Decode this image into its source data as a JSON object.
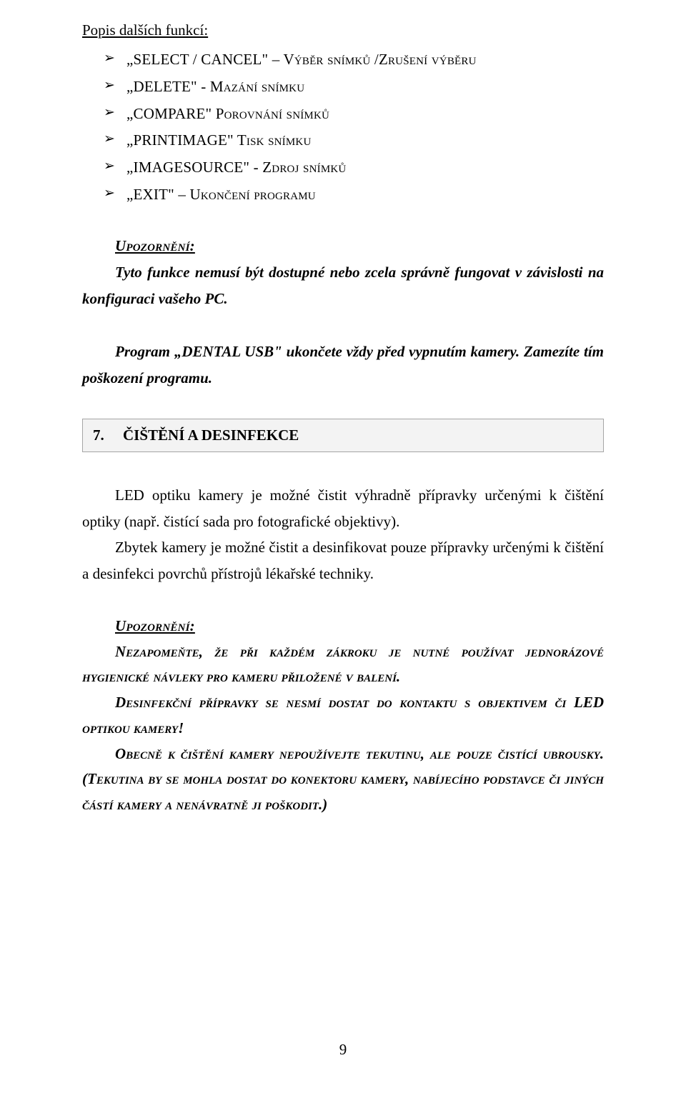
{
  "colors": {
    "page_bg": "#ffffff",
    "text": "#000000",
    "section_bg": "#f3f3f3",
    "section_border": "#a5a5a5"
  },
  "typography": {
    "family": "Times New Roman",
    "body_size_pt": 16,
    "line_height": 1.75
  },
  "heading": "Popis dalších funkcí:",
  "bullets": [
    "„SELECT / CANCEL\" – Výběr snímků /Zrušení výběru",
    "„DELETE\" - Mazání snímku",
    "„COMPARE\" Porovnání snímků",
    "„PRINTIMAGE\" Tisk snímku",
    "„IMAGESOURCE\" - Zdroj snímků",
    "„EXIT\" – Ukončení programu"
  ],
  "note1": {
    "title": "Upozornění:",
    "line1": "Tyto funkce nemusí být dostupné nebo zcela správně fungovat v závislosti na konfiguraci vašeho PC.",
    "line2": "Program „DENTAL USB\" ukončete vždy před vypnutím kamery. Zamezíte tím poškození programu."
  },
  "section": {
    "number": "7.",
    "title": "ČIŠTĚNÍ A DESINFEKCE"
  },
  "body": {
    "p1": "LED optiku kamery je možné čistit výhradně přípravky určenými k čištění optiky (např. čistící sada pro fotografické objektivy).",
    "p2": "Zbytek kamery je možné čistit a desinfikovat pouze přípravky určenými k čištění a desinfekci povrchů přístrojů lékařské techniky."
  },
  "note2": {
    "title": "Upozornění:",
    "p1": "Nezapomeňte, že při každém zákroku je nutné používat jednorázové hygienické návleky pro kameru přiložené v balení.",
    "p2": "Desinfekční přípravky se nesmí dostat do kontaktu s objektivem či LED optikou kamery!",
    "p3": "Obecně k čištění kamery nepoužívejte tekutinu, ale pouze čistící ubrousky. (Tekutina by se mohla dostat do konektoru kamery, nabíjecího podstavce či jiných částí kamery a nenávratně ji poškodit.)"
  },
  "page_number": "9"
}
